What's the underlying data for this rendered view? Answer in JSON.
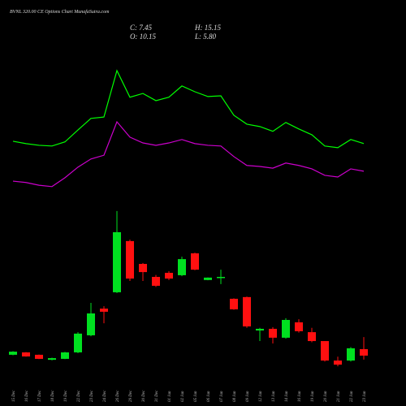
{
  "chart_data": {
    "type": "candlestick",
    "title": "BVNL 320.00 CE Options Chart MunafaSutra.com",
    "summary": {
      "close": "C: 7.45",
      "high": "H: 15.15",
      "open": "O: 10.15",
      "low": "L: 5.80"
    },
    "categories": [
      "15 Dec",
      "16 Dec",
      "17 Dec",
      "18 Dec",
      "19 Dec",
      "22 Dec",
      "23 Dec",
      "24 Dec",
      "26 Dec",
      "29 Dec",
      "30 Dec",
      "31 Dec",
      "01 Jan",
      "02 Jan",
      "05 Jan",
      "06 Jan",
      "07 Jan",
      "08 Jan",
      "09 Jan",
      "12 Jan",
      "13 Jan",
      "14 Jan",
      "16 Jan",
      "19 Jan",
      "20 Jan",
      "21 Jan",
      "22 Jan",
      "23 Jan"
    ],
    "open": [
      7.8,
      8.8,
      7.8,
      5.7,
      6.1,
      8.8,
      15.9,
      27.0,
      33.8,
      55.1,
      45.6,
      40.2,
      41.9,
      40.9,
      50.0,
      38.9,
      40.2,
      31.1,
      31.8,
      17.9,
      18.6,
      14.9,
      21.3,
      17.2,
      13.5,
      5.4,
      5.4,
      10.15
    ],
    "high": [
      9.3,
      8.9,
      7.9,
      6.6,
      9.0,
      17.2,
      29.4,
      28.0,
      67.6,
      55.7,
      46.0,
      41.0,
      42.6,
      48.6,
      50.3,
      40.0,
      43.2,
      31.3,
      32.0,
      19.0,
      19.3,
      23.0,
      22.6,
      19.0,
      13.5,
      7.0,
      11.0,
      15.15
    ],
    "low": [
      7.6,
      7.0,
      6.0,
      5.5,
      6.0,
      8.5,
      15.5,
      20.9,
      33.5,
      38.5,
      38.5,
      36.0,
      38.9,
      40.5,
      43.0,
      38.8,
      37.2,
      26.5,
      19.0,
      13.5,
      12.5,
      14.5,
      17.0,
      13.0,
      5.0,
      3.0,
      5.0,
      5.8
    ],
    "close": [
      9.1,
      7.1,
      6.1,
      6.4,
      8.8,
      16.6,
      25.0,
      25.7,
      58.8,
      39.5,
      42.2,
      36.5,
      39.5,
      47.6,
      43.2,
      39.9,
      40.2,
      26.7,
      19.6,
      18.6,
      14.9,
      22.3,
      17.6,
      13.5,
      5.4,
      3.7,
      10.5,
      7.45
    ],
    "up_color": "#00e020",
    "down_color": "#ff1010",
    "ylim": [
      0,
      155.4
    ],
    "y2lim": [
      0,
      109.5
    ],
    "series": [
      {
        "color": "#00ff00",
        "axis": "y2",
        "values": [
          68.1,
          67.4,
          66.9,
          66.7,
          67.9,
          71.4,
          74.8,
          75.2,
          88.8,
          81.0,
          82.1,
          80.0,
          81.0,
          84.3,
          82.6,
          81.2,
          81.4,
          75.7,
          73.1,
          72.4,
          71.0,
          73.6,
          71.7,
          70.0,
          66.7,
          66.2,
          68.6,
          67.4
        ]
      },
      {
        "color": "#cc00cc",
        "axis": "y2",
        "values": [
          56.4,
          56.0,
          55.2,
          54.8,
          57.4,
          60.5,
          62.9,
          64.0,
          73.8,
          69.3,
          67.6,
          66.9,
          67.6,
          68.6,
          67.4,
          66.9,
          66.7,
          63.6,
          61.0,
          60.7,
          60.2,
          61.7,
          61.0,
          60.0,
          58.1,
          57.6,
          60.0,
          59.3
        ]
      }
    ]
  }
}
